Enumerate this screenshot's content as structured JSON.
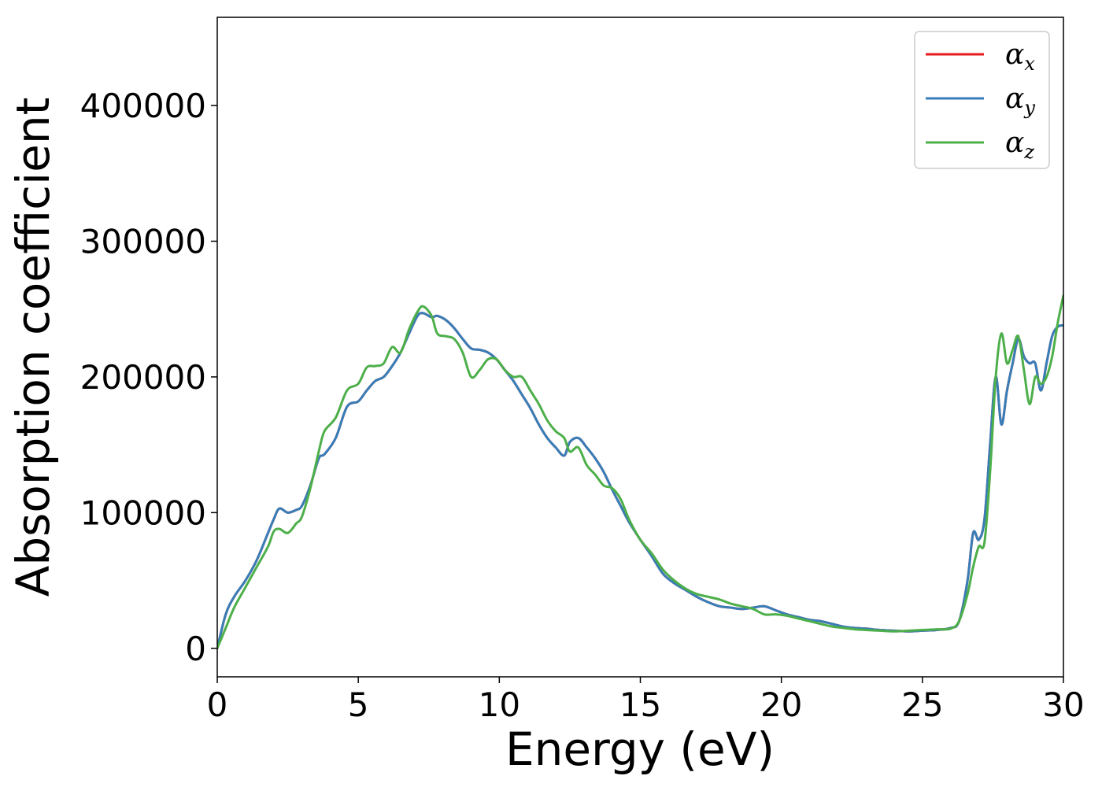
{
  "chart_data": {
    "type": "line",
    "xlabel": "Energy (eV)",
    "ylabel": "Absorption coefficient",
    "xlim": [
      0,
      30
    ],
    "ylim": [
      -21000,
      465000
    ],
    "xticks": [
      "0",
      "5",
      "10",
      "15",
      "20",
      "25",
      "30"
    ],
    "yticks": [
      "0",
      "100000",
      "200000",
      "300000",
      "400000"
    ],
    "grid": false,
    "legend_position": "top-right",
    "series": [
      {
        "name": "α",
        "subscript": "x",
        "color": "#e41a1c",
        "x": [
          0,
          0.3,
          0.6,
          1,
          1.4,
          1.8,
          2.0,
          2.2,
          2.5,
          2.8,
          3.0,
          3.3,
          3.6,
          3.8,
          4.2,
          4.6,
          5.0,
          5.3,
          5.6,
          5.9,
          6.2,
          6.5,
          6.8,
          7.1,
          7.3,
          7.6,
          7.8,
          8.1,
          8.4,
          8.7,
          9.0,
          9.3,
          9.6,
          9.9,
          10.2,
          10.5,
          10.8,
          11.1,
          11.4,
          11.7,
          12.0,
          12.3,
          12.5,
          12.8,
          13.1,
          13.4,
          13.7,
          14.0,
          14.3,
          14.6,
          15.0,
          15.4,
          15.8,
          16.2,
          16.6,
          17.0,
          17.4,
          17.8,
          18.2,
          18.6,
          19.0,
          19.4,
          19.8,
          20.2,
          20.6,
          21.0,
          21.4,
          21.8,
          22.2,
          22.6,
          23.0,
          23.5,
          24.0,
          24.5,
          25.0,
          25.5,
          26.0,
          26.3,
          26.6,
          26.8,
          27.0,
          27.2,
          27.4,
          27.6,
          27.8,
          28.0,
          28.2,
          28.4,
          28.6,
          28.8,
          29.0,
          29.2,
          29.4,
          29.6,
          29.8,
          30.0
        ],
        "values": [
          0,
          25000,
          38000,
          50000,
          65000,
          85000,
          95000,
          103000,
          100000,
          102000,
          105000,
          120000,
          140000,
          143000,
          155000,
          178000,
          182000,
          190000,
          197000,
          200000,
          208000,
          218000,
          232000,
          245000,
          247000,
          244000,
          245000,
          242000,
          236000,
          228000,
          221000,
          220000,
          218000,
          213000,
          205000,
          197000,
          187000,
          177000,
          165000,
          155000,
          148000,
          142000,
          152000,
          155000,
          148000,
          140000,
          130000,
          117000,
          105000,
          93000,
          80000,
          68000,
          55000,
          48000,
          43000,
          38000,
          34000,
          31000,
          30000,
          29000,
          30000,
          31000,
          28000,
          25000,
          23000,
          21000,
          20000,
          18000,
          16000,
          15000,
          14500,
          13500,
          13000,
          12500,
          13000,
          13500,
          15000,
          20000,
          50000,
          85000,
          80000,
          95000,
          150000,
          200000,
          165000,
          190000,
          210000,
          228000,
          215000,
          210000,
          210000,
          190000,
          210000,
          230000,
          237000,
          238000
        ]
      },
      {
        "name": "α",
        "subscript": "y",
        "color": "#377eb8",
        "x": [
          0,
          0.3,
          0.6,
          1,
          1.4,
          1.8,
          2.0,
          2.2,
          2.5,
          2.8,
          3.0,
          3.3,
          3.6,
          3.8,
          4.2,
          4.6,
          5.0,
          5.3,
          5.6,
          5.9,
          6.2,
          6.5,
          6.8,
          7.1,
          7.3,
          7.6,
          7.8,
          8.1,
          8.4,
          8.7,
          9.0,
          9.3,
          9.6,
          9.9,
          10.2,
          10.5,
          10.8,
          11.1,
          11.4,
          11.7,
          12.0,
          12.3,
          12.5,
          12.8,
          13.1,
          13.4,
          13.7,
          14.0,
          14.3,
          14.6,
          15.0,
          15.4,
          15.8,
          16.2,
          16.6,
          17.0,
          17.4,
          17.8,
          18.2,
          18.6,
          19.0,
          19.4,
          19.8,
          20.2,
          20.6,
          21.0,
          21.4,
          21.8,
          22.2,
          22.6,
          23.0,
          23.5,
          24.0,
          24.5,
          25.0,
          25.5,
          26.0,
          26.3,
          26.6,
          26.8,
          27.0,
          27.2,
          27.4,
          27.6,
          27.8,
          28.0,
          28.2,
          28.4,
          28.6,
          28.8,
          29.0,
          29.2,
          29.4,
          29.6,
          29.8,
          30.0
        ],
        "values": [
          0,
          25000,
          38000,
          50000,
          65000,
          85000,
          95000,
          103000,
          100000,
          102000,
          105000,
          120000,
          140000,
          143000,
          155000,
          178000,
          182000,
          190000,
          197000,
          200000,
          208000,
          218000,
          232000,
          245000,
          247000,
          244000,
          245000,
          242000,
          236000,
          228000,
          221000,
          220000,
          218000,
          213000,
          205000,
          197000,
          187000,
          177000,
          165000,
          155000,
          148000,
          142000,
          152000,
          155000,
          148000,
          140000,
          130000,
          117000,
          105000,
          93000,
          80000,
          68000,
          55000,
          48000,
          43000,
          38000,
          34000,
          31000,
          30000,
          29000,
          30000,
          31000,
          28000,
          25000,
          23000,
          21000,
          20000,
          18000,
          16000,
          15000,
          14500,
          13500,
          13000,
          12500,
          13000,
          13500,
          15000,
          20000,
          50000,
          85000,
          80000,
          95000,
          150000,
          200000,
          165000,
          190000,
          210000,
          228000,
          215000,
          210000,
          210000,
          190000,
          210000,
          230000,
          237000,
          238000
        ]
      },
      {
        "name": "α",
        "subscript": "z",
        "color": "#4daf4a",
        "x": [
          0,
          0.3,
          0.6,
          1,
          1.4,
          1.8,
          2.0,
          2.2,
          2.5,
          2.8,
          3.0,
          3.3,
          3.6,
          3.8,
          4.2,
          4.6,
          5.0,
          5.3,
          5.6,
          5.9,
          6.2,
          6.5,
          6.8,
          7.1,
          7.3,
          7.6,
          7.8,
          8.1,
          8.4,
          8.7,
          9.0,
          9.3,
          9.6,
          9.9,
          10.2,
          10.5,
          10.8,
          11.1,
          11.4,
          11.7,
          12.0,
          12.3,
          12.5,
          12.8,
          13.1,
          13.4,
          13.7,
          14.0,
          14.3,
          14.6,
          15.0,
          15.4,
          15.8,
          16.2,
          16.6,
          17.0,
          17.4,
          17.8,
          18.2,
          18.6,
          19.0,
          19.4,
          19.8,
          20.2,
          20.6,
          21.0,
          21.4,
          21.8,
          22.2,
          22.6,
          23.0,
          23.5,
          24.0,
          24.5,
          25.0,
          25.5,
          26.0,
          26.3,
          26.6,
          26.8,
          27.0,
          27.2,
          27.4,
          27.6,
          27.8,
          28.0,
          28.2,
          28.4,
          28.6,
          28.8,
          29.0,
          29.2,
          29.4,
          29.6,
          29.8,
          30.0
        ],
        "values": [
          0,
          15000,
          30000,
          45000,
          60000,
          75000,
          86000,
          88000,
          85000,
          92000,
          97000,
          118000,
          145000,
          160000,
          170000,
          190000,
          195000,
          207000,
          208000,
          210000,
          222000,
          218000,
          235000,
          248000,
          252000,
          245000,
          232000,
          230000,
          228000,
          218000,
          200000,
          205000,
          213000,
          213000,
          205000,
          200000,
          200000,
          190000,
          180000,
          168000,
          160000,
          155000,
          145000,
          148000,
          135000,
          128000,
          120000,
          118000,
          110000,
          95000,
          80000,
          70000,
          58000,
          50000,
          44000,
          40000,
          38000,
          36000,
          33000,
          31000,
          29000,
          25000,
          25000,
          24000,
          22000,
          20000,
          18000,
          16000,
          15000,
          14000,
          13500,
          13000,
          12500,
          13000,
          13500,
          14000,
          14500,
          20000,
          40000,
          60000,
          75000,
          78000,
          130000,
          200000,
          232000,
          210000,
          220000,
          230000,
          205000,
          180000,
          200000,
          195000,
          200000,
          215000,
          240000,
          260000
        ]
      }
    ]
  }
}
